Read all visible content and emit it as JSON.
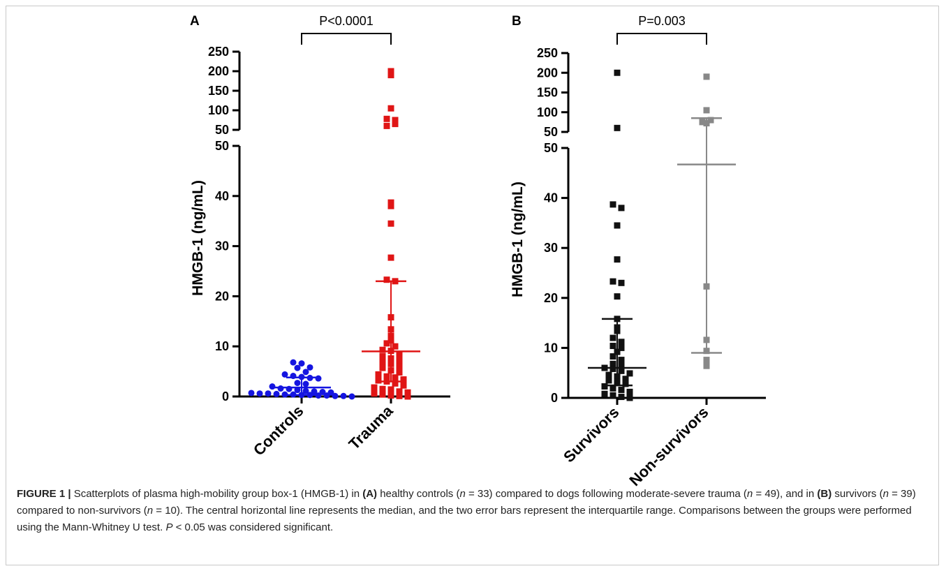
{
  "chart_data": [
    {
      "type": "scatter",
      "panel_label": "A",
      "ylabel": "HMGB-1 (ng/mL)",
      "y_axis_segments": [
        {
          "range": [
            0,
            50
          ],
          "ticks": [
            0,
            10,
            20,
            30,
            40,
            50
          ]
        },
        {
          "range": [
            50,
            250
          ],
          "ticks": [
            50,
            100,
            150,
            200,
            250
          ]
        }
      ],
      "categories": [
        "Controls",
        "Trauma"
      ],
      "comparison": {
        "text": "P<0.0001",
        "between": [
          "Controls",
          "Trauma"
        ]
      },
      "series": [
        {
          "name": "Controls",
          "color": "#1515e0",
          "marker": "circle",
          "median": 1.8,
          "q1": 0.3,
          "q3": 3.8,
          "values": [
            6.8,
            6.6,
            5.8,
            5.7,
            4.9,
            4.4,
            4.1,
            3.9,
            3.7,
            3.6,
            2.7,
            2.5,
            2.0,
            1.6,
            1.5,
            1.3,
            1.1,
            1.0,
            0.9,
            0.8,
            0.7,
            0.6,
            0.6,
            0.5,
            0.4,
            0.4,
            0.3,
            0.3,
            0.2,
            0.2,
            0.1,
            0.1,
            0.0
          ]
        },
        {
          "name": "Trauma",
          "color": "#e01515",
          "marker": "square",
          "median": 9.0,
          "q1": 3.0,
          "q3": 23.0,
          "values": [
            200,
            190,
            105,
            78,
            75,
            60,
            65,
            38.7,
            38.0,
            34.5,
            27.7,
            23.3,
            23.0,
            15.8,
            13.4,
            12.1,
            11.2,
            10.6,
            10.0,
            9.3,
            9.1,
            8.4,
            8.0,
            7.6,
            7.2,
            6.8,
            6.5,
            6.0,
            5.7,
            5.2,
            4.8,
            4.4,
            4.0,
            3.8,
            3.4,
            3.2,
            3.0,
            2.6,
            2.2,
            1.8,
            1.5,
            1.4,
            1.0,
            0.8,
            0.6,
            0.4,
            0.2,
            0.1,
            0.0
          ]
        }
      ]
    },
    {
      "type": "scatter",
      "panel_label": "B",
      "ylabel": "HMGB-1 (ng/mL)",
      "y_axis_segments": [
        {
          "range": [
            0,
            50
          ],
          "ticks": [
            0,
            10,
            20,
            30,
            40,
            50
          ]
        },
        {
          "range": [
            50,
            250
          ],
          "ticks": [
            50,
            100,
            150,
            200,
            250
          ]
        }
      ],
      "categories": [
        "Survivors",
        "Non-survivors"
      ],
      "comparison": {
        "text": "P=0.003",
        "between": [
          "Survivors",
          "Non-survivors"
        ]
      },
      "series": [
        {
          "name": "Survivors",
          "color": "#111111",
          "marker": "square",
          "median": 6.0,
          "q1": 2.5,
          "q3": 15.8,
          "values": [
            200,
            60,
            38.7,
            38.0,
            34.5,
            27.7,
            23.3,
            23.0,
            20.3,
            15.8,
            14.1,
            13.4,
            12.0,
            11.2,
            10.4,
            10.0,
            9.2,
            8.3,
            7.6,
            6.8,
            6.5,
            6.0,
            5.8,
            5.4,
            4.9,
            4.6,
            4.3,
            3.8,
            3.5,
            3.2,
            2.8,
            2.3,
            1.9,
            1.6,
            1.2,
            0.8,
            0.5,
            0.2,
            0.0
          ]
        },
        {
          "name": "Non-survivors",
          "color": "#888888",
          "marker": "square",
          "median": 46.7,
          "q1": 9.0,
          "q3": 85.0,
          "values": [
            190,
            105,
            75,
            80,
            72,
            22.3,
            11.6,
            9.4,
            7.6,
            6.4
          ]
        }
      ]
    }
  ],
  "caption": {
    "label": "FIGURE 1 |",
    "parts": [
      {
        "t": " Scatterplots of plasma high-mobility group box-1 (HMGB-1) in "
      },
      {
        "t": "(A)",
        "s": "b"
      },
      {
        "t": " healthy controls ("
      },
      {
        "t": "n",
        "s": "i"
      },
      {
        "t": " =  33) compared to dogs following moderate-severe trauma ("
      },
      {
        "t": "n",
        "s": "i"
      },
      {
        "t": " = 49), and in "
      },
      {
        "t": "(B)",
        "s": "b"
      },
      {
        "t": " survivors ("
      },
      {
        "t": "n",
        "s": "i"
      },
      {
        "t": " = 39) compared to non-survivors ("
      },
      {
        "t": "n",
        "s": "i"
      },
      {
        "t": " = 10). The central horizontal line represents the median, and the two error bars represent the interquartile range. Comparisons between the groups were performed using the Mann-Whitney U test. "
      },
      {
        "t": "P",
        "s": "i"
      },
      {
        "t": " < 0.05 was considered significant."
      }
    ]
  }
}
